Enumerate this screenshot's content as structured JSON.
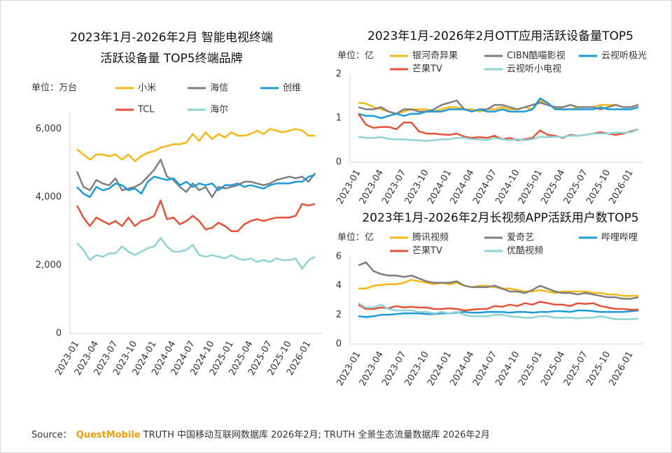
{
  "chart_data": [
    {
      "type": "line",
      "title": [
        "2023年1月-2026年2月 智能电视终端",
        "活跃设备量 TOP5终端品牌"
      ],
      "unit": "单位：万台",
      "categories": [
        "2023-01",
        null,
        null,
        "2023-04",
        null,
        null,
        "2023-07",
        null,
        null,
        "2023-10",
        null,
        null,
        "2024-01",
        null,
        null,
        "2024-04",
        null,
        null,
        "2024-07",
        null,
        null,
        "2024-10",
        null,
        null,
        "2025-01",
        null,
        null,
        "2025-04",
        null,
        null,
        "2025-07",
        null,
        null,
        "2025-10",
        null,
        null,
        "2026-01",
        null
      ],
      "ylim": [
        0,
        6500
      ],
      "yticks": [
        0,
        {
          "value": 2000,
          "label": "2,000"
        },
        {
          "value": 4000,
          "label": "4,000"
        },
        {
          "value": 6000,
          "label": "6,000"
        }
      ],
      "series": [
        {
          "name": "小米",
          "color": "#f5b719",
          "values": [
            5400,
            5250,
            5100,
            5250,
            5250,
            5200,
            5250,
            5100,
            5250,
            5050,
            5200,
            5300,
            5350,
            5450,
            5500,
            5550,
            5550,
            5600,
            5850,
            5650,
            5900,
            5700,
            5850,
            5750,
            5900,
            5800,
            5800,
            5850,
            5950,
            5850,
            6000,
            5950,
            5900,
            5950,
            6000,
            5950,
            5800,
            5800
          ]
        },
        {
          "name": "海信",
          "color": "#7f7f7f",
          "values": [
            4750,
            4300,
            4200,
            4500,
            4400,
            4350,
            4550,
            4200,
            4250,
            4300,
            4400,
            4600,
            4800,
            5100,
            4600,
            4500,
            4300,
            4150,
            4400,
            4200,
            4300,
            4000,
            4300,
            4250,
            4300,
            4350,
            4450,
            4450,
            4400,
            4350,
            4400,
            4500,
            4550,
            4600,
            4550,
            4600,
            4450,
            4700
          ]
        },
        {
          "name": "创维",
          "color": "#1f9ad6",
          "values": [
            4300,
            4100,
            4000,
            4300,
            4200,
            4250,
            4400,
            4350,
            4200,
            4250,
            4100,
            4450,
            4600,
            4550,
            4500,
            4550,
            4350,
            4450,
            4300,
            4400,
            4350,
            4400,
            4200,
            4350,
            4350,
            4400,
            4300,
            4350,
            4300,
            4250,
            4350,
            4400,
            4400,
            4400,
            4450,
            4450,
            4600,
            4650
          ]
        },
        {
          "name": "TCL",
          "color": "#e2533a",
          "values": [
            3750,
            3400,
            3150,
            3400,
            3300,
            3200,
            3300,
            3150,
            3400,
            3150,
            3300,
            3350,
            3450,
            3900,
            3350,
            3400,
            3200,
            3300,
            3450,
            3300,
            3050,
            3100,
            3250,
            3150,
            3000,
            3000,
            3200,
            3300,
            3350,
            3300,
            3350,
            3400,
            3400,
            3400,
            3450,
            3800,
            3750,
            3800
          ]
        },
        {
          "name": "海尔",
          "color": "#8fd3d5",
          "values": [
            2650,
            2450,
            2150,
            2300,
            2250,
            2350,
            2350,
            2550,
            2400,
            2300,
            2400,
            2500,
            2550,
            2800,
            2550,
            2400,
            2400,
            2450,
            2600,
            2300,
            2250,
            2300,
            2250,
            2200,
            2300,
            2200,
            2150,
            2200,
            2100,
            2150,
            2100,
            2200,
            2150,
            2150,
            2200,
            1900,
            2150,
            2250
          ]
        }
      ]
    },
    {
      "type": "line",
      "title": [
        "2023年1月-2026年2月OTT应用活跃设备量TOP5"
      ],
      "unit": "单位：亿",
      "categories": [
        "2023-01",
        null,
        null,
        "2023-04",
        null,
        null,
        "2023-07",
        null,
        null,
        "2023-10",
        null,
        null,
        "2024-01",
        null,
        null,
        "2024-04",
        null,
        null,
        "2024-07",
        null,
        null,
        "2024-10",
        null,
        null,
        "2025-01",
        null,
        null,
        "2025-04",
        null,
        null,
        "2025-07",
        null,
        null,
        "2025-10",
        null,
        null,
        "2026-01",
        null
      ],
      "ylim": [
        0,
        2
      ],
      "yticks": [
        0,
        1,
        2
      ],
      "series": [
        {
          "name": "银河奇异果",
          "color": "#f5b719",
          "values": [
            1.35,
            1.33,
            1.25,
            1.2,
            1.15,
            1.1,
            1.15,
            1.2,
            1.2,
            1.2,
            1.15,
            1.2,
            1.25,
            1.25,
            1.2,
            1.2,
            1.15,
            1.2,
            1.2,
            1.25,
            1.2,
            1.2,
            1.25,
            1.2,
            1.4,
            1.3,
            1.25,
            1.2,
            1.2,
            1.25,
            1.25,
            1.25,
            1.3,
            1.3,
            1.3,
            1.25,
            1.25,
            1.3
          ]
        },
        {
          "name": "CIBN酷喵影视",
          "color": "#7f7f7f",
          "values": [
            1.25,
            1.2,
            1.2,
            1.25,
            1.15,
            1.1,
            1.2,
            1.2,
            1.15,
            1.15,
            1.2,
            1.3,
            1.35,
            1.4,
            1.2,
            1.15,
            1.2,
            1.2,
            1.3,
            1.3,
            1.25,
            1.2,
            1.25,
            1.3,
            1.35,
            1.3,
            1.25,
            1.25,
            1.3,
            1.25,
            1.25,
            1.25,
            1.2,
            1.25,
            1.3,
            1.25,
            1.25,
            1.3
          ]
        },
        {
          "name": "云视听极光",
          "color": "#1f9ad6",
          "values": [
            1.1,
            1.05,
            1.05,
            1.0,
            1.05,
            1.1,
            1.05,
            1.1,
            1.1,
            1.15,
            1.15,
            1.15,
            1.2,
            1.2,
            1.2,
            1.15,
            1.2,
            1.15,
            1.15,
            1.2,
            1.15,
            1.15,
            1.15,
            1.2,
            1.45,
            1.35,
            1.2,
            1.2,
            1.2,
            1.2,
            1.2,
            1.2,
            1.25,
            1.2,
            1.2,
            1.2,
            1.2,
            1.25
          ]
        },
        {
          "name": "芒果TV",
          "color": "#e2533a",
          "values": [
            1.1,
            0.85,
            0.78,
            0.8,
            0.8,
            0.75,
            0.9,
            0.9,
            0.7,
            0.65,
            0.65,
            0.63,
            0.62,
            0.65,
            0.58,
            0.55,
            0.57,
            0.55,
            0.6,
            0.52,
            0.55,
            0.5,
            0.52,
            0.55,
            0.72,
            0.62,
            0.6,
            0.55,
            0.62,
            0.6,
            0.62,
            0.65,
            0.68,
            0.65,
            0.62,
            0.65,
            0.7,
            0.75
          ]
        },
        {
          "name": "云视听小电视",
          "color": "#8fd3d5",
          "values": [
            0.58,
            0.55,
            0.55,
            0.57,
            0.53,
            0.52,
            0.52,
            0.5,
            0.5,
            0.48,
            0.5,
            0.52,
            0.52,
            0.55,
            0.55,
            0.52,
            0.52,
            0.5,
            0.55,
            0.52,
            0.5,
            0.52,
            0.5,
            0.52,
            0.58,
            0.57,
            0.58,
            0.57,
            0.6,
            0.6,
            0.62,
            0.65,
            0.65,
            0.65,
            0.67,
            0.67,
            0.68,
            0.75
          ]
        }
      ]
    },
    {
      "type": "line",
      "title": [
        "2023年1月-2026年2月长视频APP活跃用户数TOP5"
      ],
      "unit": "单位：亿",
      "categories": [
        "2023-01",
        null,
        null,
        "2023-04",
        null,
        null,
        "2023-07",
        null,
        null,
        "2023-10",
        null,
        null,
        "2024-01",
        null,
        null,
        "2024-04",
        null,
        null,
        "2024-07",
        null,
        null,
        "2024-10",
        null,
        null,
        "2025-01",
        null,
        null,
        "2025-04",
        null,
        null,
        "2025-07",
        null,
        null,
        "2025-10",
        null,
        null,
        "2026-01",
        null
      ],
      "ylim": [
        0,
        6
      ],
      "yticks": [
        0,
        2,
        4,
        6
      ],
      "series": [
        {
          "name": "腾讯视频",
          "color": "#f5b719",
          "values": [
            3.8,
            3.8,
            4.0,
            4.05,
            4.1,
            4.1,
            4.2,
            4.4,
            4.3,
            4.2,
            4.1,
            4.2,
            4.1,
            4.2,
            4.0,
            3.9,
            4.0,
            4.0,
            3.9,
            3.8,
            3.8,
            3.7,
            3.6,
            3.6,
            3.7,
            3.6,
            3.5,
            3.6,
            3.6,
            3.6,
            3.6,
            3.5,
            3.5,
            3.4,
            3.4,
            3.3,
            3.3,
            3.3
          ]
        },
        {
          "name": "爱奇艺",
          "color": "#7f7f7f",
          "values": [
            5.4,
            5.6,
            5.0,
            4.8,
            4.7,
            4.7,
            4.6,
            4.7,
            4.5,
            4.3,
            4.2,
            4.2,
            4.2,
            4.3,
            4.0,
            3.9,
            3.9,
            3.9,
            4.0,
            3.8,
            3.6,
            3.6,
            3.5,
            3.7,
            4.0,
            3.8,
            3.6,
            3.5,
            3.5,
            3.4,
            3.5,
            3.4,
            3.3,
            3.2,
            3.2,
            3.1,
            3.1,
            3.2
          ]
        },
        {
          "name": "哔哩哔哩",
          "color": "#1f9ad6",
          "values": [
            1.9,
            1.85,
            1.9,
            2.0,
            2.0,
            2.05,
            2.1,
            2.1,
            2.1,
            2.05,
            2.05,
            2.1,
            2.1,
            2.15,
            2.2,
            2.15,
            2.15,
            2.2,
            2.2,
            2.2,
            2.15,
            2.2,
            2.2,
            2.15,
            2.2,
            2.2,
            2.25,
            2.25,
            2.2,
            2.3,
            2.3,
            2.25,
            2.2,
            2.2,
            2.2,
            2.2,
            2.25,
            2.3
          ]
        },
        {
          "name": "芒果TV",
          "color": "#e2533a",
          "values": [
            2.7,
            2.4,
            2.4,
            2.5,
            2.45,
            2.6,
            2.5,
            2.55,
            2.5,
            2.5,
            2.4,
            2.4,
            2.45,
            2.4,
            2.3,
            2.35,
            2.4,
            2.4,
            2.6,
            2.55,
            2.7,
            2.6,
            2.8,
            2.7,
            2.9,
            2.8,
            2.7,
            2.7,
            2.6,
            2.8,
            2.75,
            2.8,
            2.6,
            2.5,
            2.4,
            2.4,
            2.35,
            2.35
          ]
        },
        {
          "name": "优酷视频",
          "color": "#8fd3d5",
          "values": [
            2.8,
            2.5,
            2.5,
            2.7,
            2.4,
            2.3,
            2.3,
            2.3,
            2.2,
            2.2,
            2.1,
            2.2,
            2.1,
            2.2,
            2.0,
            1.9,
            1.9,
            1.9,
            2.0,
            2.0,
            1.9,
            1.85,
            1.8,
            1.8,
            1.9,
            1.9,
            1.8,
            1.8,
            1.8,
            1.75,
            1.8,
            1.8,
            1.9,
            1.8,
            1.7,
            1.7,
            1.7,
            1.75
          ]
        }
      ]
    }
  ],
  "footer": {
    "label": "Source：",
    "brand": "QuestMobile",
    "text": "TRUTH 中国移动互联网数据库 2026年2月; TRUTH 全景生态流量数据库 2026年2月"
  }
}
